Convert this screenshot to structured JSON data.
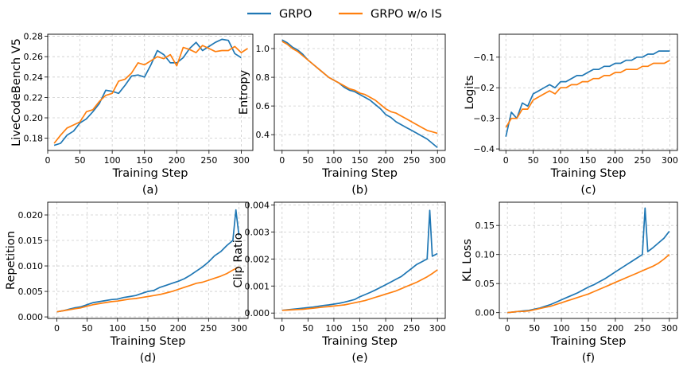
{
  "legend": {
    "entries": [
      {
        "name": "GRPO",
        "color": "#1f77b4"
      },
      {
        "name": "GRPO w/o IS",
        "color": "#ff7f0e"
      }
    ]
  },
  "chart_data": [
    {
      "id": "a",
      "type": "line",
      "panel_label": "(a)",
      "xlabel": "Training Step",
      "ylabel": "LiveCodeBench V5",
      "xlim": [
        0,
        318
      ],
      "ylim": [
        0.168,
        0.282
      ],
      "xticks": [
        0,
        50,
        100,
        150,
        200,
        250,
        300
      ],
      "xtick_labels": [
        "0",
        "50",
        "100",
        "150",
        "200",
        "250",
        "300"
      ],
      "yticks": [
        0.18,
        0.2,
        0.22,
        0.24,
        0.26,
        0.28
      ],
      "ytick_labels": [
        "0.18",
        "0.20",
        "0.22",
        "0.24",
        "0.26",
        "0.28"
      ],
      "grid": true,
      "series": [
        {
          "name": "GRPO",
          "color": "#1f77b4",
          "x": [
            10,
            20,
            30,
            40,
            50,
            60,
            70,
            80,
            90,
            100,
            110,
            120,
            130,
            140,
            150,
            160,
            170,
            180,
            190,
            200,
            210,
            220,
            230,
            240,
            250,
            260,
            270,
            280,
            290,
            300
          ],
          "y": [
            0.173,
            0.175,
            0.183,
            0.187,
            0.195,
            0.199,
            0.206,
            0.214,
            0.227,
            0.226,
            0.224,
            0.232,
            0.241,
            0.242,
            0.24,
            0.252,
            0.266,
            0.262,
            0.254,
            0.254,
            0.259,
            0.268,
            0.274,
            0.266,
            0.27,
            0.274,
            0.277,
            0.276,
            0.263,
            0.259
          ]
        },
        {
          "name": "GRPO w/o IS",
          "color": "#ff7f0e",
          "x": [
            10,
            20,
            30,
            40,
            50,
            60,
            70,
            80,
            90,
            100,
            110,
            120,
            130,
            140,
            150,
            160,
            170,
            180,
            190,
            200,
            210,
            220,
            230,
            240,
            250,
            260,
            270,
            280,
            290,
            300,
            310
          ],
          "y": [
            0.175,
            0.183,
            0.19,
            0.193,
            0.196,
            0.206,
            0.208,
            0.216,
            0.222,
            0.224,
            0.236,
            0.238,
            0.244,
            0.254,
            0.252,
            0.256,
            0.26,
            0.258,
            0.262,
            0.251,
            0.269,
            0.267,
            0.264,
            0.271,
            0.268,
            0.265,
            0.266,
            0.266,
            0.27,
            0.264,
            0.268
          ]
        }
      ]
    },
    {
      "id": "b",
      "type": "line",
      "panel_label": "(b)",
      "xlabel": "Training Step",
      "ylabel": "Entropy",
      "xlim": [
        -15,
        315
      ],
      "ylim": [
        0.29,
        1.1
      ],
      "xticks": [
        0,
        50,
        100,
        150,
        200,
        250,
        300
      ],
      "xtick_labels": [
        "0",
        "50",
        "100",
        "150",
        "200",
        "250",
        "300"
      ],
      "yticks": [
        0.4,
        0.6,
        0.8,
        1.0
      ],
      "ytick_labels": [
        "0.4",
        "0.6",
        "0.8",
        "1.0"
      ],
      "grid": true,
      "series": [
        {
          "name": "GRPO",
          "color": "#1f77b4",
          "x": [
            0,
            10,
            20,
            30,
            40,
            50,
            60,
            70,
            80,
            90,
            100,
            110,
            120,
            130,
            140,
            150,
            160,
            170,
            180,
            190,
            200,
            210,
            220,
            230,
            240,
            250,
            260,
            270,
            280,
            290,
            300
          ],
          "y": [
            1.06,
            1.04,
            1.01,
            0.99,
            0.96,
            0.92,
            0.89,
            0.86,
            0.83,
            0.8,
            0.78,
            0.76,
            0.73,
            0.71,
            0.7,
            0.68,
            0.66,
            0.64,
            0.61,
            0.58,
            0.54,
            0.52,
            0.49,
            0.47,
            0.45,
            0.43,
            0.41,
            0.39,
            0.37,
            0.34,
            0.31
          ]
        },
        {
          "name": "GRPO w/o IS",
          "color": "#ff7f0e",
          "x": [
            0,
            10,
            20,
            30,
            40,
            50,
            60,
            70,
            80,
            90,
            100,
            110,
            120,
            130,
            140,
            150,
            160,
            170,
            180,
            190,
            200,
            210,
            220,
            230,
            240,
            250,
            260,
            270,
            280,
            290,
            300
          ],
          "y": [
            1.05,
            1.03,
            1.0,
            0.98,
            0.95,
            0.92,
            0.89,
            0.86,
            0.83,
            0.8,
            0.78,
            0.76,
            0.74,
            0.72,
            0.71,
            0.69,
            0.68,
            0.66,
            0.64,
            0.61,
            0.58,
            0.56,
            0.55,
            0.53,
            0.51,
            0.49,
            0.47,
            0.45,
            0.43,
            0.42,
            0.41
          ]
        }
      ]
    },
    {
      "id": "c",
      "type": "line",
      "panel_label": "(c)",
      "xlabel": "Training Step",
      "ylabel": "Logits",
      "xlim": [
        -12,
        314
      ],
      "ylim": [
        -0.405,
        -0.025
      ],
      "xticks": [
        0,
        50,
        100,
        150,
        200,
        250,
        300
      ],
      "xtick_labels": [
        "0",
        "50",
        "100",
        "150",
        "200",
        "250",
        "300"
      ],
      "yticks": [
        -0.4,
        -0.3,
        -0.2,
        -0.1
      ],
      "ytick_labels": [
        "−0.4",
        "−0.3",
        "−0.2",
        "−0.1"
      ],
      "grid": true,
      "series": [
        {
          "name": "GRPO",
          "color": "#1f77b4",
          "x": [
            0,
            10,
            20,
            30,
            40,
            50,
            60,
            70,
            80,
            90,
            100,
            110,
            120,
            130,
            140,
            150,
            160,
            170,
            180,
            190,
            200,
            210,
            220,
            230,
            240,
            250,
            260,
            270,
            280,
            290,
            300
          ],
          "y": [
            -0.36,
            -0.28,
            -0.3,
            -0.25,
            -0.26,
            -0.22,
            -0.21,
            -0.2,
            -0.19,
            -0.2,
            -0.18,
            -0.18,
            -0.17,
            -0.16,
            -0.16,
            -0.15,
            -0.14,
            -0.14,
            -0.13,
            -0.13,
            -0.12,
            -0.12,
            -0.11,
            -0.11,
            -0.1,
            -0.1,
            -0.09,
            -0.09,
            -0.08,
            -0.08,
            -0.08
          ]
        },
        {
          "name": "GRPO w/o IS",
          "color": "#ff7f0e",
          "x": [
            0,
            10,
            20,
            30,
            40,
            50,
            60,
            70,
            80,
            90,
            100,
            110,
            120,
            130,
            140,
            150,
            160,
            170,
            180,
            190,
            200,
            210,
            220,
            230,
            240,
            250,
            260,
            270,
            280,
            290,
            300
          ],
          "y": [
            -0.33,
            -0.3,
            -0.3,
            -0.27,
            -0.27,
            -0.24,
            -0.23,
            -0.22,
            -0.21,
            -0.22,
            -0.2,
            -0.2,
            -0.19,
            -0.19,
            -0.18,
            -0.18,
            -0.17,
            -0.17,
            -0.16,
            -0.16,
            -0.15,
            -0.15,
            -0.14,
            -0.14,
            -0.14,
            -0.13,
            -0.13,
            -0.12,
            -0.12,
            -0.12,
            -0.11
          ]
        }
      ]
    },
    {
      "id": "d",
      "type": "line",
      "panel_label": "(d)",
      "xlabel": "Training Step",
      "ylabel": "Repetition",
      "xlim": [
        -15,
        315
      ],
      "ylim": [
        -0.0003,
        0.0225
      ],
      "xticks": [
        0,
        50,
        100,
        150,
        200,
        250,
        300
      ],
      "xtick_labels": [
        "0",
        "50",
        "100",
        "150",
        "200",
        "250",
        "300"
      ],
      "yticks": [
        0.0,
        0.005,
        0.01,
        0.015,
        0.02
      ],
      "ytick_labels": [
        "0.000",
        "0.005",
        "0.010",
        "0.015",
        "0.020"
      ],
      "grid": true,
      "series": [
        {
          "name": "GRPO",
          "color": "#1f77b4",
          "x": [
            0,
            10,
            20,
            30,
            40,
            50,
            60,
            70,
            80,
            90,
            100,
            110,
            120,
            130,
            140,
            150,
            160,
            170,
            180,
            190,
            200,
            210,
            220,
            230,
            240,
            250,
            260,
            270,
            280,
            290,
            295,
            300
          ],
          "y": [
            0.001,
            0.0012,
            0.0015,
            0.0018,
            0.002,
            0.0024,
            0.0028,
            0.003,
            0.0032,
            0.0034,
            0.0035,
            0.0038,
            0.004,
            0.0042,
            0.0046,
            0.005,
            0.0052,
            0.0058,
            0.0062,
            0.0066,
            0.007,
            0.0075,
            0.0082,
            0.009,
            0.0098,
            0.0108,
            0.012,
            0.0128,
            0.014,
            0.015,
            0.021,
            0.016
          ]
        },
        {
          "name": "GRPO w/o IS",
          "color": "#ff7f0e",
          "x": [
            0,
            10,
            20,
            30,
            40,
            50,
            60,
            70,
            80,
            90,
            100,
            110,
            120,
            130,
            140,
            150,
            160,
            170,
            180,
            190,
            200,
            210,
            220,
            230,
            240,
            250,
            260,
            270,
            280,
            290,
            300
          ],
          "y": [
            0.001,
            0.0012,
            0.0014,
            0.0016,
            0.0018,
            0.0021,
            0.0024,
            0.0026,
            0.0028,
            0.003,
            0.0031,
            0.0033,
            0.0035,
            0.0036,
            0.0038,
            0.004,
            0.0042,
            0.0044,
            0.0047,
            0.005,
            0.0054,
            0.0058,
            0.0062,
            0.0066,
            0.0068,
            0.0072,
            0.0076,
            0.008,
            0.0085,
            0.0092,
            0.0098
          ]
        }
      ]
    },
    {
      "id": "e",
      "type": "line",
      "panel_label": "(e)",
      "xlabel": "Training Step",
      "ylabel": "Clip Ratio",
      "xlim": [
        -15,
        315
      ],
      "ylim": [
        -0.0002,
        0.0041
      ],
      "xticks": [
        0,
        50,
        100,
        150,
        200,
        250,
        300
      ],
      "xtick_labels": [
        "0",
        "50",
        "100",
        "150",
        "200",
        "250",
        "300"
      ],
      "yticks": [
        0.0,
        0.001,
        0.002,
        0.003,
        0.004
      ],
      "ytick_labels": [
        "0.000",
        "0.001",
        "0.002",
        "0.003",
        "0.004"
      ],
      "grid": true,
      "series": [
        {
          "name": "GRPO",
          "color": "#1f77b4",
          "x": [
            0,
            10,
            20,
            30,
            40,
            50,
            60,
            70,
            80,
            90,
            100,
            110,
            120,
            130,
            140,
            150,
            160,
            170,
            180,
            190,
            200,
            210,
            220,
            230,
            240,
            250,
            260,
            270,
            280,
            285,
            290,
            300
          ],
          "y": [
            0.0001,
            0.00012,
            0.00014,
            0.00016,
            0.00018,
            0.0002,
            0.00022,
            0.00025,
            0.00028,
            0.0003,
            0.00033,
            0.00036,
            0.0004,
            0.00045,
            0.0005,
            0.0006,
            0.00068,
            0.00076,
            0.00085,
            0.00095,
            0.00105,
            0.00115,
            0.00125,
            0.00135,
            0.0015,
            0.00165,
            0.0018,
            0.0019,
            0.002,
            0.0038,
            0.0021,
            0.0022
          ]
        },
        {
          "name": "GRPO w/o IS",
          "color": "#ff7f0e",
          "x": [
            0,
            10,
            20,
            30,
            40,
            50,
            60,
            70,
            80,
            90,
            100,
            110,
            120,
            130,
            140,
            150,
            160,
            170,
            180,
            190,
            200,
            210,
            220,
            230,
            240,
            250,
            260,
            270,
            280,
            290,
            300
          ],
          "y": [
            0.0001,
            0.00011,
            0.00012,
            0.00013,
            0.00014,
            0.00016,
            0.00018,
            0.0002,
            0.00022,
            0.00024,
            0.00026,
            0.00028,
            0.0003,
            0.00034,
            0.00038,
            0.00042,
            0.00046,
            0.00052,
            0.00058,
            0.00064,
            0.0007,
            0.00076,
            0.00082,
            0.0009,
            0.00098,
            0.00106,
            0.00114,
            0.00124,
            0.00134,
            0.00146,
            0.0016
          ]
        }
      ]
    },
    {
      "id": "f",
      "type": "line",
      "panel_label": "(f)",
      "xlabel": "Training Step",
      "ylabel": "KL Loss",
      "xlim": [
        -15,
        315
      ],
      "ylim": [
        -0.01,
        0.19
      ],
      "xticks": [
        0,
        50,
        100,
        150,
        200,
        250,
        300
      ],
      "xtick_labels": [
        "0",
        "50",
        "100",
        "150",
        "200",
        "250",
        "300"
      ],
      "yticks": [
        0.0,
        0.05,
        0.1,
        0.15
      ],
      "ytick_labels": [
        "0.00",
        "0.05",
        "0.10",
        "0.15"
      ],
      "grid": true,
      "series": [
        {
          "name": "GRPO",
          "color": "#1f77b4",
          "x": [
            0,
            10,
            20,
            30,
            40,
            50,
            60,
            70,
            80,
            90,
            100,
            110,
            120,
            130,
            140,
            150,
            160,
            170,
            180,
            190,
            200,
            210,
            220,
            230,
            240,
            250,
            255,
            260,
            270,
            280,
            290,
            300
          ],
          "y": [
            0.0,
            0.001,
            0.002,
            0.003,
            0.004,
            0.006,
            0.008,
            0.011,
            0.014,
            0.018,
            0.022,
            0.026,
            0.03,
            0.034,
            0.039,
            0.044,
            0.048,
            0.053,
            0.058,
            0.064,
            0.07,
            0.076,
            0.082,
            0.088,
            0.094,
            0.1,
            0.18,
            0.105,
            0.112,
            0.12,
            0.128,
            0.14
          ]
        },
        {
          "name": "GRPO w/o IS",
          "color": "#ff7f0e",
          "x": [
            0,
            10,
            20,
            30,
            40,
            50,
            60,
            70,
            80,
            90,
            100,
            110,
            120,
            130,
            140,
            150,
            160,
            170,
            180,
            190,
            200,
            210,
            220,
            230,
            240,
            250,
            260,
            270,
            280,
            290,
            300
          ],
          "y": [
            0.0,
            0.001,
            0.002,
            0.002,
            0.003,
            0.005,
            0.007,
            0.009,
            0.011,
            0.014,
            0.017,
            0.02,
            0.023,
            0.026,
            0.029,
            0.032,
            0.036,
            0.04,
            0.044,
            0.048,
            0.052,
            0.056,
            0.06,
            0.064,
            0.068,
            0.072,
            0.076,
            0.08,
            0.085,
            0.092,
            0.1
          ]
        }
      ]
    }
  ]
}
